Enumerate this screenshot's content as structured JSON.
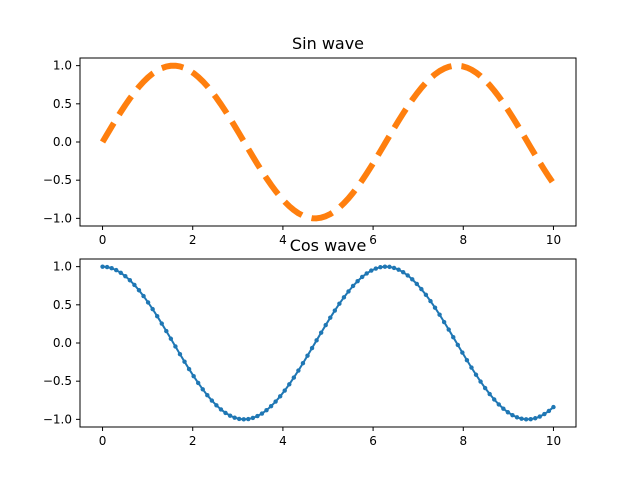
{
  "chart_data": [
    {
      "type": "line",
      "title": "Sin wave",
      "xlabel": "",
      "ylabel": "",
      "xlim": [
        -0.5,
        10.5
      ],
      "ylim": [
        -1.1,
        1.1
      ],
      "xticks": [
        0,
        2,
        4,
        6,
        8,
        10
      ],
      "yticks": [
        1.0,
        0.5,
        0.0,
        -0.5,
        -1.0
      ],
      "xtick_labels": [
        "0",
        "2",
        "4",
        "6",
        "8",
        "10"
      ],
      "ytick_labels": [
        "1.0",
        "0.5",
        "0.0",
        "−0.5",
        "−1.0"
      ],
      "grid": false,
      "series": [
        {
          "function": "sin",
          "x_range": [
            0,
            10
          ],
          "points": 100,
          "color": "#ff7f0e",
          "line_style": "dashed",
          "marker": "none"
        }
      ]
    },
    {
      "type": "line",
      "title": "Cos wave",
      "xlabel": "",
      "ylabel": "",
      "xlim": [
        -0.5,
        10.5
      ],
      "ylim": [
        -1.1,
        1.1
      ],
      "xticks": [
        0,
        2,
        4,
        6,
        8,
        10
      ],
      "yticks": [
        1.0,
        0.5,
        0.0,
        -0.5,
        -1.0
      ],
      "xtick_labels": [
        "0",
        "2",
        "4",
        "6",
        "8",
        "10"
      ],
      "ytick_labels": [
        "1.0",
        "0.5",
        "0.0",
        "−0.5",
        "−1.0"
      ],
      "grid": false,
      "series": [
        {
          "function": "cos",
          "x_range": [
            0,
            10
          ],
          "points": 100,
          "color": "#1f77b4",
          "line_style": "solid",
          "marker": "dot"
        }
      ]
    }
  ]
}
